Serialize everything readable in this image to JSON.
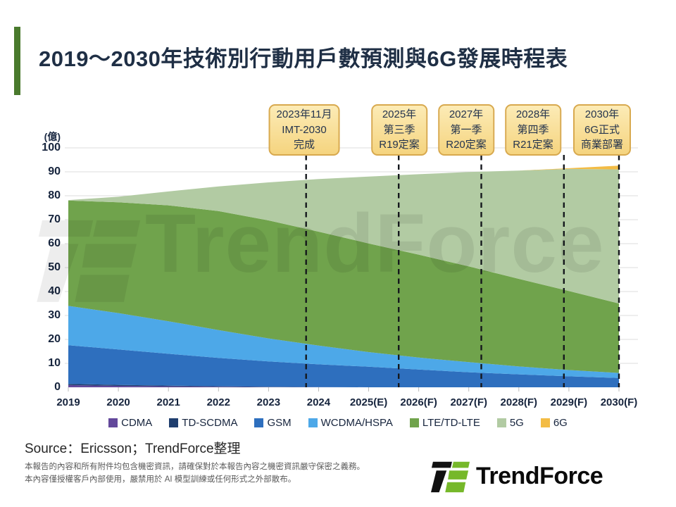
{
  "title": "2019～2030年技術別行動用戶數預測與6G發展時程表",
  "watermark": "TrendForce",
  "source": "Source：Ericsson；TrendForce整理",
  "footer_lines": [
    "本報告的內容和所有附件均包含機密資訊，請確保對於本報告內容之機密資訊嚴守保密之義務。",
    "本內容僅授權客戶內部使用，嚴禁用於 AI 模型訓練或任何形式之外部散布。"
  ],
  "logo_text": "TrendForce",
  "callouts": [
    {
      "lines": [
        "2023年11月",
        "IMT-2030",
        "完成"
      ],
      "year": 2023.75
    },
    {
      "lines": [
        "2025年",
        "第三季",
        "R19定案"
      ],
      "year": 2025.6
    },
    {
      "lines": [
        "2027年",
        "第一季",
        "R20定案"
      ],
      "year": 2027.25
    },
    {
      "lines": [
        "2028年",
        "第四季",
        "R21定案"
      ],
      "year": 2028.9
    },
    {
      "lines": [
        "2030年",
        "6G正式",
        "商業部署"
      ],
      "year": 2030
    }
  ],
  "chart_data": {
    "type": "area",
    "stacked": true,
    "title": "2019～2030年技術別行動用戶數預測與6G發展時程表",
    "y_unit": "(億)",
    "ylabel": "(億)",
    "xlabel": "",
    "ylim": [
      0,
      100
    ],
    "y_ticks": [
      0,
      10,
      20,
      30,
      40,
      50,
      60,
      70,
      80,
      90,
      100
    ],
    "grid": true,
    "legend_position": "bottom",
    "x": [
      2019,
      2020,
      2021,
      2022,
      2023,
      2024,
      2025,
      2026,
      2027,
      2028,
      2029,
      2030
    ],
    "x_tick_labels": [
      "2019",
      "2020",
      "2021",
      "2022",
      "2023",
      "2024",
      "2025(E)",
      "2026(F)",
      "2027(F)",
      "2028(F)",
      "2029(F)",
      "2030(F)"
    ],
    "series": [
      {
        "name": "CDMA",
        "color": "#63489B",
        "values": [
          0.9,
          0.6,
          0.4,
          0.2,
          0.1,
          0.1,
          0,
          0,
          0,
          0,
          0,
          0
        ]
      },
      {
        "name": "TD-SCDMA",
        "color": "#1F3E6E",
        "values": [
          0.5,
          0.4,
          0.3,
          0.2,
          0.1,
          0,
          0,
          0,
          0,
          0,
          0,
          0
        ]
      },
      {
        "name": "GSM",
        "color": "#2E6FBE",
        "values": [
          16.2,
          14.8,
          13.3,
          11.9,
          10.6,
          9.5,
          8.6,
          7.4,
          6.3,
          5.4,
          4.6,
          3.9
        ]
      },
      {
        "name": "WCDMA/HSPA",
        "color": "#4DA8E8",
        "values": [
          16.4,
          15.2,
          13.6,
          11.6,
          9.6,
          7.8,
          6.1,
          5.0,
          4.2,
          3.3,
          2.6,
          2.1
        ]
      },
      {
        "name": "LTE/TD-LTE",
        "color": "#70A34C",
        "values": [
          44.0,
          46.3,
          48.4,
          49.7,
          49.3,
          47.6,
          45.4,
          43.0,
          40.0,
          36.6,
          33.0,
          29.0
        ]
      },
      {
        "name": "5G",
        "color": "#B2CBA3",
        "values": [
          0.2,
          2.3,
          5.8,
          10.3,
          15.9,
          22.0,
          27.9,
          33.6,
          39.4,
          45.2,
          51.0,
          56.0
        ]
      },
      {
        "name": "6G",
        "color": "#F3BC45",
        "values": [
          0,
          0,
          0,
          0,
          0,
          0,
          0,
          0,
          0,
          0,
          0.3,
          1.6
        ]
      }
    ],
    "timeline_years": [
      2023.75,
      2025.6,
      2027.25,
      2028.9,
      2030
    ],
    "gridline_color": "#dcdcdc",
    "timeline_line_color": "#15181d"
  }
}
